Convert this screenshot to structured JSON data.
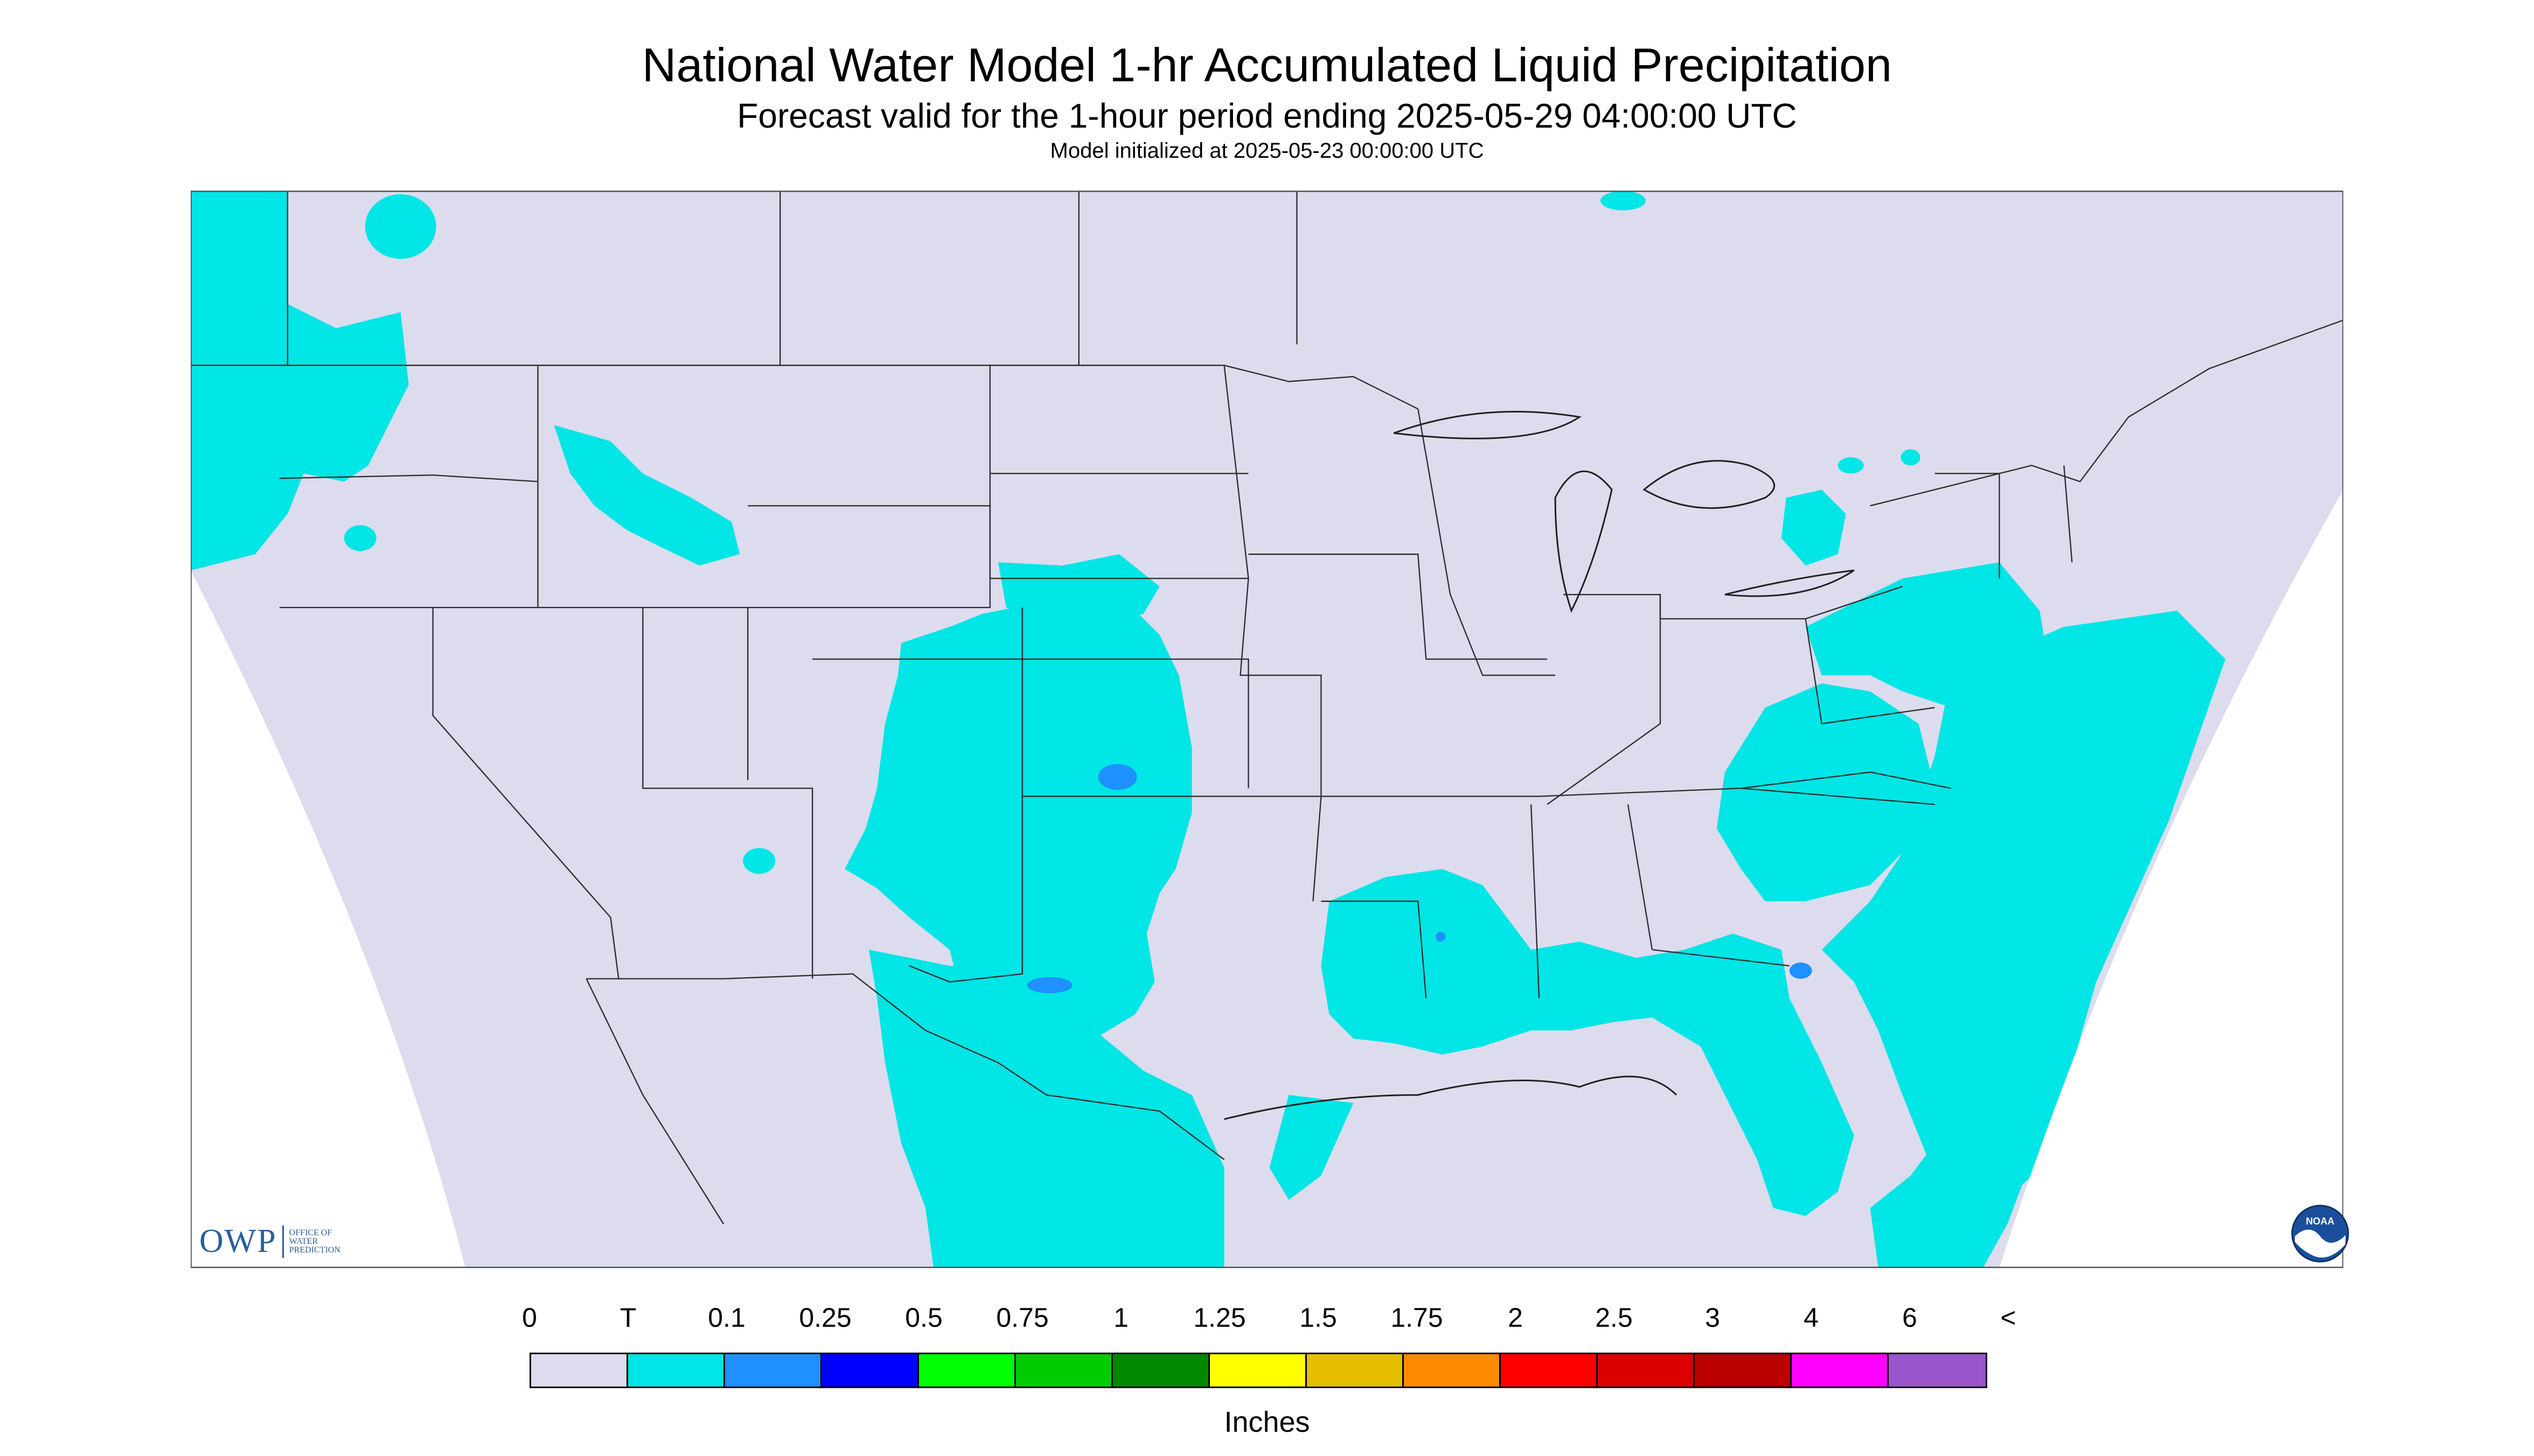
{
  "title": "National Water Model 1-hr Accumulated Liquid Precipitation",
  "subtitle": "Forecast valid for the 1-hour period ending 2025-05-29 04:00:00 UTC",
  "init_text": "Model initialized at 2025-05-23 00:00:00 UTC",
  "colors": {
    "background": "#dcdcee",
    "outside_projection": "#ffffff",
    "precip_trace": "#00e5e5",
    "precip_0_1": "#1e90ff",
    "boundary": "#303030"
  },
  "legend": {
    "labels": [
      "0",
      "T",
      "0.1",
      "0.25",
      "0.5",
      "0.75",
      "1",
      "1.25",
      "1.5",
      "1.75",
      "2",
      "2.5",
      "3",
      "4",
      "6",
      "<"
    ],
    "colors": [
      "#dcdcee",
      "#00e5e5",
      "#1e90ff",
      "#0000ff",
      "#00ff00",
      "#00cc00",
      "#008800",
      "#ffff00",
      "#e6be00",
      "#ff8c00",
      "#ff0000",
      "#dd0000",
      "#bb0000",
      "#ff00ff",
      "#9955cc"
    ],
    "units": "Inches"
  },
  "logos": {
    "owp_mark": "OWP",
    "owp_text": "OFFICE OF WATER PREDICTION",
    "noaa_text": "NOAA"
  },
  "icons": {
    "owp": "owp-logo-icon",
    "noaa": "noaa-logo-icon"
  }
}
